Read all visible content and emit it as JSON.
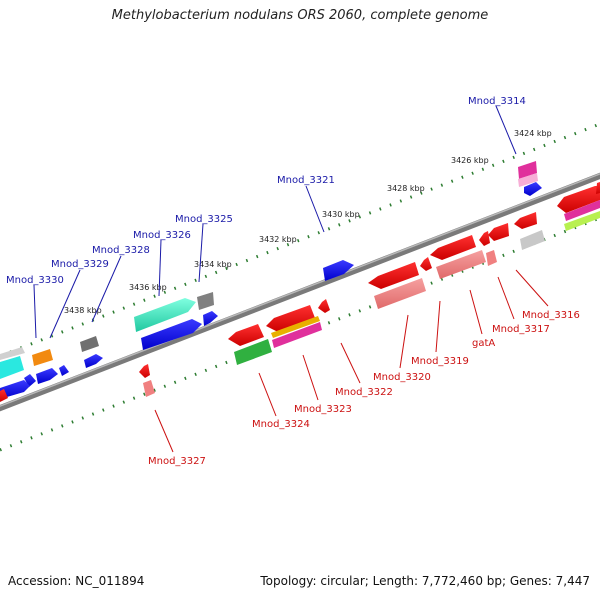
{
  "title": "Methylobacterium nodulans ORS 2060, complete genome",
  "footer": {
    "accession": "Accession: NC_011894",
    "summary": "Topology: circular; Length: 7,772,460 bp; Genes: 7,447"
  },
  "colors": {
    "backbone": "#7a7a7a",
    "tick": "#2e7d32",
    "label_forward": "#1a1aa8",
    "label_reverse": "#cc1111"
  },
  "ruler_labels": [
    "3424 kbp",
    "3426 kbp",
    "3428 kbp",
    "3430 kbp",
    "3432 kbp",
    "3434 kbp",
    "3436 kbp",
    "3438 kbp"
  ],
  "genes_forward": [
    {
      "label": "Mnod_3314"
    },
    {
      "label": "Mnod_3321"
    },
    {
      "label": "Mnod_3325"
    },
    {
      "label": "Mnod_3326"
    },
    {
      "label": "Mnod_3328"
    },
    {
      "label": "Mnod_3329"
    },
    {
      "label": "Mnod_3330"
    }
  ],
  "genes_reverse": [
    {
      "label": "Mnod_3316"
    },
    {
      "label": "Mnod_3317"
    },
    {
      "label": "gatA"
    },
    {
      "label": "Mnod_3319"
    },
    {
      "label": "Mnod_3320"
    },
    {
      "label": "Mnod_3322"
    },
    {
      "label": "Mnod_3323"
    },
    {
      "label": "Mnod_3324"
    },
    {
      "label": "Mnod_3327"
    }
  ]
}
